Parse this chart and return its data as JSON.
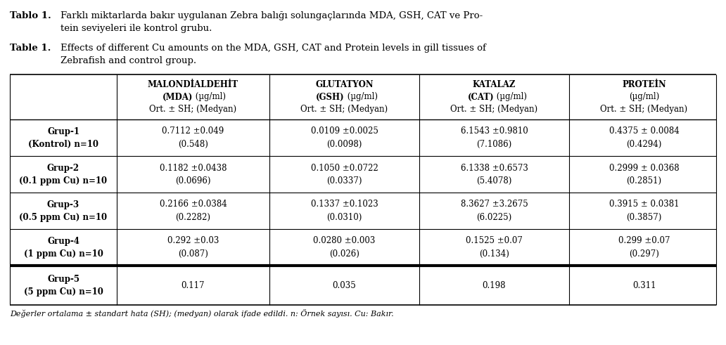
{
  "title_tr_bold": "Tablo 1.",
  "title_tr_line1": "Farklı miktarlarda bakır uygulanan Zebra balığı solungaçlarında MDA, GSH, CAT ve Pro-",
  "title_tr_line2": "tein seviyeleri ile kontrol grubu.",
  "title_en_bold": "Table 1.",
  "title_en_line1": "Effects of different Cu amounts on the MDA, GSH, CAT and Protein levels in gill tissues of",
  "title_en_line2": "Zebrafish and control group.",
  "col_headers": [
    [
      "MALONDİALDEHİT",
      "(MDA) (µg/ml)",
      "Ort. ± SH; (Medyan)"
    ],
    [
      "GLUTATYON",
      "(GSH) (µg/ml)",
      "Ort. ± SH; (Medyan)"
    ],
    [
      "KATALAZ",
      "(CAT) (µg/ml)",
      "Ort. ± SH; (Medyan)"
    ],
    [
      "PROTEİN",
      "(µg/ml)",
      "Ort. ± SH; (Medyan)"
    ]
  ],
  "col_header_bold_line2": [
    "(MDA)",
    "(GSH)",
    "(CAT)",
    null
  ],
  "row_headers": [
    [
      "Grup-1",
      "(Kontrol) n=10"
    ],
    [
      "Grup-2",
      "(0.1 ppm Cu) n=10"
    ],
    [
      "Grup-3",
      "(0.5 ppm Cu) n=10"
    ],
    [
      "Grup-4",
      "(1 ppm Cu) n=10"
    ],
    [
      "Grup-5",
      "(5 ppm Cu) n=10"
    ]
  ],
  "data": [
    [
      "0.7112 ±0.049",
      "(0.548)",
      "0.0109 ±0.0025",
      "(0.0098)",
      "6.1543 ±0.9810",
      "(7.1086)",
      "0.4375 ± 0.0084",
      "(0.4294)"
    ],
    [
      "0.1182 ±0.0438",
      "(0.0696)",
      "0.1050 ±0.0722",
      "(0.0337)",
      "6.1338 ±0.6573",
      "(5.4078)",
      "0.2999 ± 0.0368",
      "(0.2851)"
    ],
    [
      "0.2166 ±0.0384",
      "(0.2282)",
      "0.1337 ±0.1023",
      "(0.0310)",
      "8.3627 ±3.2675",
      "(6.0225)",
      "0.3915 ± 0.0381",
      "(0.3857)"
    ],
    [
      "0.292 ±0.03",
      "(0.087)",
      "0.0280 ±0.003",
      "(0.026)",
      "0.1525 ±0.07",
      "(0.134)",
      "0.299 ±0.07",
      "(0.297)"
    ],
    [
      "0.117",
      "",
      "0.035",
      "",
      "0.198",
      "",
      "0.311",
      ""
    ]
  ],
  "footnote": "Değerler ortalama ± standart hata (SH); (medyan) olarak ifade edildi. n: Örnek sayısı. Cu: Bakır.",
  "bg_color": "#ffffff",
  "font_family": "DejaVu Serif",
  "title_fontsize": 9.5,
  "table_fontsize": 8.5,
  "header_fontsize": 8.5,
  "footnote_fontsize": 8.0
}
